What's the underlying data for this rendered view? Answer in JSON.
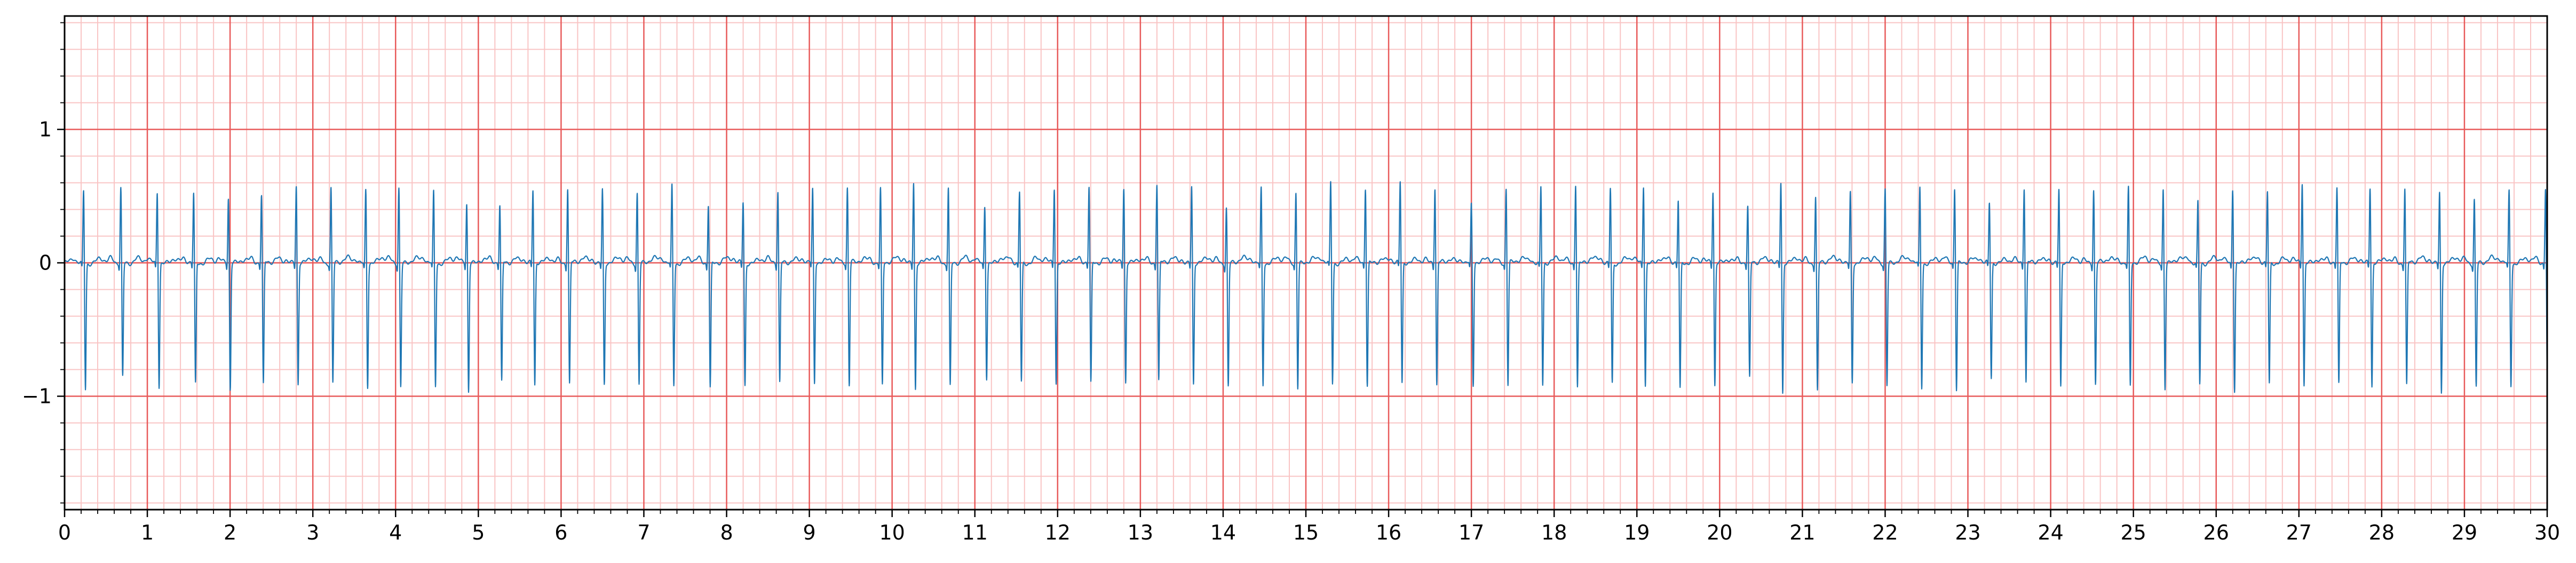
{
  "chart_data": {
    "type": "line",
    "title": "",
    "xlabel": "",
    "ylabel": "",
    "xlim": [
      0,
      30
    ],
    "ylim": [
      -1.85,
      1.85
    ],
    "x_ticks": [
      0,
      1,
      2,
      3,
      4,
      5,
      6,
      7,
      8,
      9,
      10,
      11,
      12,
      13,
      14,
      15,
      16,
      17,
      18,
      19,
      20,
      21,
      22,
      23,
      24,
      25,
      26,
      27,
      28,
      29,
      30
    ],
    "x_tick_labels": [
      "0",
      "1",
      "2",
      "3",
      "4",
      "5",
      "6",
      "7",
      "8",
      "9",
      "10",
      "11",
      "12",
      "13",
      "14",
      "15",
      "16",
      "17",
      "18",
      "19",
      "20",
      "21",
      "22",
      "23",
      "24",
      "25",
      "26",
      "27",
      "28",
      "29",
      "30"
    ],
    "y_ticks": [
      -1,
      0,
      1
    ],
    "y_tick_labels": [
      "−1",
      "0",
      "1"
    ],
    "grid": {
      "major": true,
      "minor": true,
      "major_step_x": 1,
      "minor_step_x": 0.2,
      "major_step_y": 1,
      "minor_step_y": 0.2,
      "major_color": "#e85a5a",
      "minor_color": "#f9c4c4"
    },
    "series": [
      {
        "name": "",
        "color": "#1f77b4",
        "beats": [
          {
            "t": 0.23,
            "r": 0.56,
            "s": -0.95
          },
          {
            "t": 0.68,
            "r": 0.58,
            "s": -0.86
          },
          {
            "t": 1.12,
            "r": 0.55,
            "s": -0.93
          },
          {
            "t": 1.56,
            "r": 0.53,
            "s": -0.92
          },
          {
            "t": 1.98,
            "r": 0.5,
            "s": -0.96
          },
          {
            "t": 2.38,
            "r": 0.52,
            "s": -0.93
          },
          {
            "t": 2.8,
            "r": 0.59,
            "s": -0.92
          },
          {
            "t": 3.22,
            "r": 0.58,
            "s": -0.91
          },
          {
            "t": 3.64,
            "r": 0.57,
            "s": -0.93
          },
          {
            "t": 4.04,
            "r": 0.59,
            "s": -0.93
          },
          {
            "t": 4.46,
            "r": 0.55,
            "s": -0.93
          },
          {
            "t": 4.86,
            "r": 0.46,
            "s": -0.97
          },
          {
            "t": 5.26,
            "r": 0.44,
            "s": -0.91
          },
          {
            "t": 5.66,
            "r": 0.56,
            "s": -0.93
          },
          {
            "t": 6.08,
            "r": 0.58,
            "s": -0.92
          },
          {
            "t": 6.5,
            "r": 0.57,
            "s": -0.92
          },
          {
            "t": 6.92,
            "r": 0.55,
            "s": -0.91
          },
          {
            "t": 7.34,
            "r": 0.6,
            "s": -0.92
          },
          {
            "t": 7.78,
            "r": 0.46,
            "s": -0.94
          },
          {
            "t": 8.2,
            "r": 0.47,
            "s": -0.93
          },
          {
            "t": 8.62,
            "r": 0.55,
            "s": -0.91
          },
          {
            "t": 9.04,
            "r": 0.56,
            "s": -0.92
          },
          {
            "t": 9.46,
            "r": 0.58,
            "s": -0.93
          },
          {
            "t": 9.86,
            "r": 0.57,
            "s": -0.93
          },
          {
            "t": 10.26,
            "r": 0.63,
            "s": -0.95
          },
          {
            "t": 10.68,
            "r": 0.58,
            "s": -0.93
          },
          {
            "t": 11.12,
            "r": 0.45,
            "s": -0.86
          },
          {
            "t": 11.54,
            "r": 0.55,
            "s": -0.9
          },
          {
            "t": 11.96,
            "r": 0.58,
            "s": -0.91
          },
          {
            "t": 12.38,
            "r": 0.58,
            "s": -0.92
          },
          {
            "t": 12.8,
            "r": 0.57,
            "s": -0.91
          },
          {
            "t": 13.2,
            "r": 0.61,
            "s": -0.9
          },
          {
            "t": 13.62,
            "r": 0.59,
            "s": -0.92
          },
          {
            "t": 14.04,
            "r": 0.44,
            "s": -0.93
          },
          {
            "t": 14.46,
            "r": 0.58,
            "s": -0.92
          },
          {
            "t": 14.88,
            "r": 0.55,
            "s": -0.94
          },
          {
            "t": 15.3,
            "r": 0.62,
            "s": -0.91
          },
          {
            "t": 15.72,
            "r": 0.58,
            "s": -0.93
          },
          {
            "t": 16.14,
            "r": 0.62,
            "s": -0.92
          },
          {
            "t": 16.56,
            "r": 0.58,
            "s": -0.93
          },
          {
            "t": 17.0,
            "r": 0.45,
            "s": -0.93
          },
          {
            "t": 17.42,
            "r": 0.58,
            "s": -0.92
          },
          {
            "t": 17.84,
            "r": 0.59,
            "s": -0.92
          },
          {
            "t": 18.26,
            "r": 0.62,
            "s": -0.93
          },
          {
            "t": 18.68,
            "r": 0.58,
            "s": -0.91
          },
          {
            "t": 19.08,
            "r": 0.6,
            "s": -0.92
          },
          {
            "t": 19.5,
            "r": 0.48,
            "s": -0.96
          },
          {
            "t": 19.92,
            "r": 0.55,
            "s": -0.93
          },
          {
            "t": 20.34,
            "r": 0.43,
            "s": -0.88
          },
          {
            "t": 20.74,
            "r": 0.62,
            "s": -0.99
          },
          {
            "t": 21.16,
            "r": 0.52,
            "s": -0.97
          },
          {
            "t": 21.58,
            "r": 0.55,
            "s": -0.9
          },
          {
            "t": 22.0,
            "r": 0.58,
            "s": -0.92
          },
          {
            "t": 22.42,
            "r": 0.58,
            "s": -0.94
          },
          {
            "t": 22.84,
            "r": 0.58,
            "s": -0.96
          },
          {
            "t": 23.26,
            "r": 0.46,
            "s": -0.88
          },
          {
            "t": 23.68,
            "r": 0.58,
            "s": -0.91
          },
          {
            "t": 24.1,
            "r": 0.56,
            "s": -0.95
          },
          {
            "t": 24.52,
            "r": 0.57,
            "s": -0.92
          },
          {
            "t": 24.94,
            "r": 0.58,
            "s": -0.93
          },
          {
            "t": 25.36,
            "r": 0.58,
            "s": -0.94
          },
          {
            "t": 25.78,
            "r": 0.48,
            "s": -0.91
          },
          {
            "t": 26.2,
            "r": 0.58,
            "s": -0.96
          },
          {
            "t": 26.62,
            "r": 0.55,
            "s": -0.92
          },
          {
            "t": 27.04,
            "r": 0.62,
            "s": -0.93
          },
          {
            "t": 27.46,
            "r": 0.57,
            "s": -0.93
          },
          {
            "t": 27.86,
            "r": 0.58,
            "s": -0.94
          },
          {
            "t": 28.28,
            "r": 0.58,
            "s": -0.93
          },
          {
            "t": 28.7,
            "r": 0.55,
            "s": -0.98
          },
          {
            "t": 29.12,
            "r": 0.5,
            "s": -0.93
          },
          {
            "t": 29.54,
            "r": 0.56,
            "s": -0.92
          },
          {
            "t": 29.98,
            "r": 0.58,
            "s": -0.93
          }
        ]
      }
    ]
  }
}
